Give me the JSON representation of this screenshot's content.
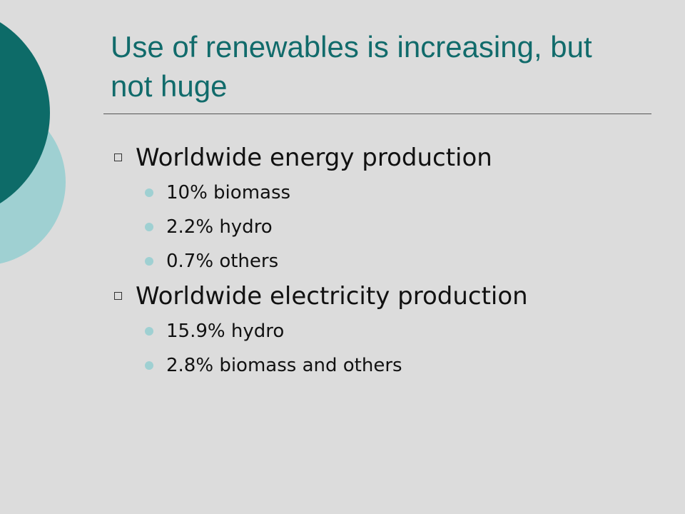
{
  "slide": {
    "title": "Use of renewables is increasing, but not huge",
    "items": [
      {
        "text": "Worldwide energy production",
        "subitems": [
          "10% biomass",
          "2.2% hydro",
          "0.7% others"
        ]
      },
      {
        "text": "Worldwide electricity production",
        "subitems": [
          "15.9% hydro",
          "2.8% biomass and others"
        ]
      }
    ]
  }
}
